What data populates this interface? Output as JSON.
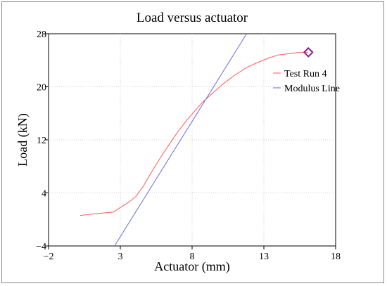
{
  "chart_data": {
    "type": "line",
    "title": "Load versus actuator",
    "xlabel": "Actuator (mm)",
    "ylabel": "Load (kN)",
    "xlim": [
      -2,
      18
    ],
    "ylim": [
      -4,
      28
    ],
    "x_ticks": [
      "−2",
      "3",
      "8",
      "13",
      "18"
    ],
    "y_ticks": [
      "−4",
      "4",
      "12",
      "20",
      "28"
    ],
    "x_tick_values": [
      -2,
      3,
      8,
      13,
      18
    ],
    "y_tick_values": [
      -4,
      4,
      12,
      20,
      28
    ],
    "grid": true,
    "legend_position": "right",
    "series": [
      {
        "name": "Test Run 4",
        "color": "#ff5a5a",
        "x": [
          0.2,
          1.0,
          1.5,
          2.0,
          2.5,
          3.0,
          3.6,
          4.1,
          4.6,
          5.0,
          5.5,
          6.0,
          6.5,
          7.0,
          7.5,
          8.0,
          8.7,
          9.4,
          10.2,
          11.0,
          11.8,
          12.5,
          13.3,
          14.0,
          14.8,
          15.5,
          16.1
        ],
        "y": [
          0.6,
          0.8,
          0.9,
          1.0,
          1.1,
          1.8,
          2.6,
          3.5,
          5.0,
          6.5,
          8.3,
          10.0,
          11.6,
          13.2,
          14.6,
          15.9,
          17.6,
          19.0,
          20.5,
          21.8,
          22.9,
          23.6,
          24.3,
          24.8,
          25.0,
          25.2,
          25.2
        ]
      },
      {
        "name": "Modulus Line",
        "color": "#6a6ae0",
        "x": [
          2.6,
          11.8
        ],
        "y": [
          -4.0,
          28.0
        ]
      }
    ],
    "marker": {
      "x": 16.1,
      "y": 25.2,
      "shape": "diamond",
      "color": "#8b1a8b"
    }
  }
}
